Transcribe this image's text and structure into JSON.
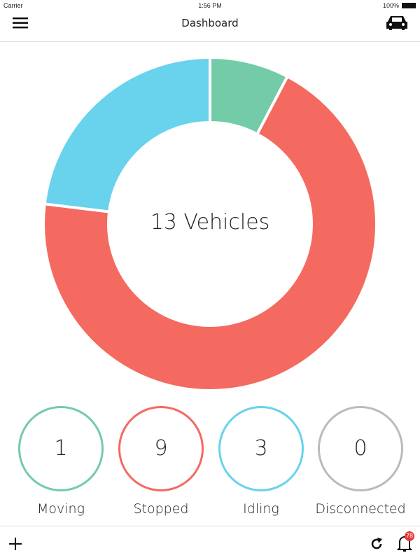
{
  "status_bar": {
    "carrier": "Carrier",
    "time": "1:56 PM",
    "battery": "100%"
  },
  "header": {
    "title": "Dashboard",
    "menu_icon": "hamburger-icon",
    "right_icon": "car-icon"
  },
  "donut": {
    "center_label": "13 Vehicles",
    "segments": [
      {
        "name": "Moving",
        "value": 1,
        "color": "#74cba7"
      },
      {
        "name": "Stopped",
        "value": 9,
        "color": "#f46a60"
      },
      {
        "name": "Idling",
        "value": 3,
        "color": "#69d2ec"
      }
    ]
  },
  "stats": [
    {
      "value": "1",
      "label": "Moving",
      "color": "#74cba7"
    },
    {
      "value": "9",
      "label": "Stopped",
      "color": "#f46a60"
    },
    {
      "value": "3",
      "label": "Idling",
      "color": "#69d2ec"
    },
    {
      "value": "0",
      "label": "Disconnected",
      "color": "#bbbbbb"
    }
  ],
  "footer": {
    "add_icon": "plus-icon",
    "refresh_icon": "refresh-icon",
    "bell_icon": "bell-icon",
    "notification_count": "78"
  }
}
